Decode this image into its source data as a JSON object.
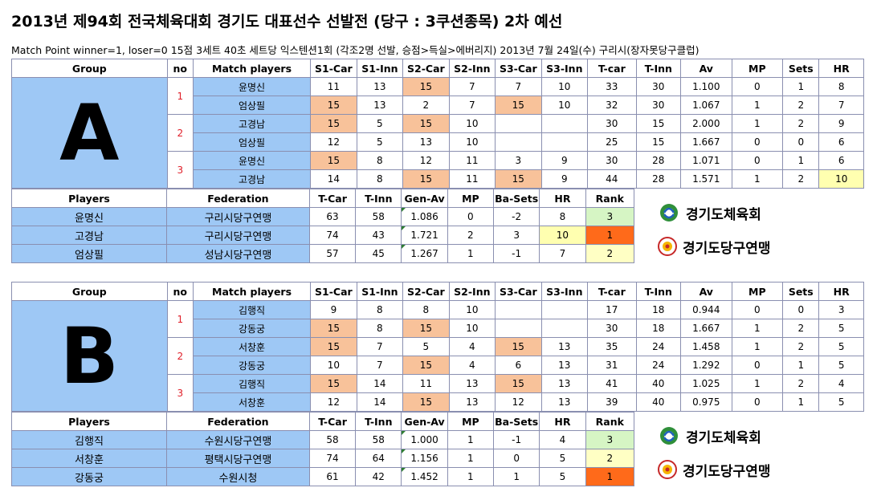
{
  "title": "2013년 제94회 전국체육대회 경기도 대표선수 선발전 (당구 : 3쿠션종목)  2차 예선",
  "subtitle": "Match Point  winner=1, loser=0    15점 3세트 40초 세트당 익스텐션1회  (각조2명 선발, 승점>득실>에버리지) 2013년 7월 24일(수) 구리시(장자못당구클럽)",
  "match_headers": [
    "Group",
    "no",
    "Match players",
    "S1-Car",
    "S1-Inn",
    "S2-Car",
    "S2-Inn",
    "S3-Car",
    "S3-Inn",
    "T-car",
    "T-Inn",
    "Av",
    "MP",
    "Sets",
    "HR"
  ],
  "player_headers": [
    "Players",
    "Federation",
    "T-Car",
    "T-Inn",
    "Gen-Av",
    "MP",
    "Ba-Sets",
    "HR",
    "Rank"
  ],
  "logos": {
    "sports": "경기도체육회",
    "billiards": "경기도당구연맹"
  },
  "groups": [
    {
      "name": "A",
      "matches": [
        {
          "no": "1",
          "rows": [
            {
              "player": "윤명신",
              "s1c": "11",
              "s1i": "13",
              "s2c": "15",
              "s2i": "7",
              "s3c": "7",
              "s3i": "10",
              "tc": "33",
              "ti": "30",
              "av": "1.100",
              "mp": "0",
              "sets": "1",
              "hr": "8"
            },
            {
              "player": "엄상필",
              "s1c": "15",
              "s1i": "13",
              "s2c": "2",
              "s2i": "7",
              "s3c": "15",
              "s3i": "10",
              "tc": "32",
              "ti": "30",
              "av": "1.067",
              "mp": "1",
              "sets": "2",
              "hr": "7"
            }
          ]
        },
        {
          "no": "2",
          "rows": [
            {
              "player": "고경남",
              "s1c": "15",
              "s1i": "5",
              "s2c": "15",
              "s2i": "10",
              "s3c": "",
              "s3i": "",
              "tc": "30",
              "ti": "15",
              "av": "2.000",
              "mp": "1",
              "sets": "2",
              "hr": "9"
            },
            {
              "player": "엄상필",
              "s1c": "12",
              "s1i": "5",
              "s2c": "13",
              "s2i": "10",
              "s3c": "",
              "s3i": "",
              "tc": "25",
              "ti": "15",
              "av": "1.667",
              "mp": "0",
              "sets": "0",
              "hr": "6"
            }
          ]
        },
        {
          "no": "3",
          "rows": [
            {
              "player": "윤명신",
              "s1c": "15",
              "s1i": "8",
              "s2c": "12",
              "s2i": "11",
              "s3c": "3",
              "s3i": "9",
              "tc": "30",
              "ti": "28",
              "av": "1.071",
              "mp": "0",
              "sets": "1",
              "hr": "6"
            },
            {
              "player": "고경남",
              "s1c": "14",
              "s1i": "8",
              "s2c": "15",
              "s2i": "11",
              "s3c": "15",
              "s3i": "9",
              "tc": "44",
              "ti": "28",
              "av": "1.571",
              "mp": "1",
              "sets": "2",
              "hr": "10"
            }
          ]
        }
      ],
      "players": [
        {
          "name": "윤명신",
          "fed": "구리시당구연맹",
          "tc": "63",
          "ti": "58",
          "av": "1.086",
          "mp": "0",
          "sets": "-2",
          "hr": "8",
          "rank": "3"
        },
        {
          "name": "고경남",
          "fed": "구리시당구연맹",
          "tc": "74",
          "ti": "43",
          "av": "1.721",
          "mp": "2",
          "sets": "3",
          "hr": "10",
          "rank": "1"
        },
        {
          "name": "엄상필",
          "fed": "성남시당구연맹",
          "tc": "57",
          "ti": "45",
          "av": "1.267",
          "mp": "1",
          "sets": "-1",
          "hr": "7",
          "rank": "2"
        }
      ]
    },
    {
      "name": "B",
      "matches": [
        {
          "no": "1",
          "rows": [
            {
              "player": "김행직",
              "s1c": "9",
              "s1i": "8",
              "s2c": "8",
              "s2i": "10",
              "s3c": "",
              "s3i": "",
              "tc": "17",
              "ti": "18",
              "av": "0.944",
              "mp": "0",
              "sets": "0",
              "hr": "3"
            },
            {
              "player": "강동궁",
              "s1c": "15",
              "s1i": "8",
              "s2c": "15",
              "s2i": "10",
              "s3c": "",
              "s3i": "",
              "tc": "30",
              "ti": "18",
              "av": "1.667",
              "mp": "1",
              "sets": "2",
              "hr": "5"
            }
          ]
        },
        {
          "no": "2",
          "rows": [
            {
              "player": "서창훈",
              "s1c": "15",
              "s1i": "7",
              "s2c": "5",
              "s2i": "4",
              "s3c": "15",
              "s3i": "13",
              "tc": "35",
              "ti": "24",
              "av": "1.458",
              "mp": "1",
              "sets": "2",
              "hr": "5"
            },
            {
              "player": "강동궁",
              "s1c": "10",
              "s1i": "7",
              "s2c": "15",
              "s2i": "4",
              "s3c": "6",
              "s3i": "13",
              "tc": "31",
              "ti": "24",
              "av": "1.292",
              "mp": "0",
              "sets": "1",
              "hr": "5"
            }
          ]
        },
        {
          "no": "3",
          "rows": [
            {
              "player": "김행직",
              "s1c": "15",
              "s1i": "14",
              "s2c": "11",
              "s2i": "13",
              "s3c": "15",
              "s3i": "13",
              "tc": "41",
              "ti": "40",
              "av": "1.025",
              "mp": "1",
              "sets": "2",
              "hr": "4"
            },
            {
              "player": "서창훈",
              "s1c": "12",
              "s1i": "14",
              "s2c": "15",
              "s2i": "13",
              "s3c": "12",
              "s3i": "13",
              "tc": "39",
              "ti": "40",
              "av": "0.975",
              "mp": "0",
              "sets": "1",
              "hr": "5"
            }
          ]
        }
      ],
      "players": [
        {
          "name": "김행직",
          "fed": "수원시당구연맹",
          "tc": "58",
          "ti": "58",
          "av": "1.000",
          "mp": "1",
          "sets": "-1",
          "hr": "4",
          "rank": "3"
        },
        {
          "name": "서창훈",
          "fed": "평택시당구연맹",
          "tc": "74",
          "ti": "64",
          "av": "1.156",
          "mp": "1",
          "sets": "0",
          "hr": "5",
          "rank": "2"
        },
        {
          "name": "강동궁",
          "fed": "수원시청",
          "tc": "61",
          "ti": "42",
          "av": "1.452",
          "mp": "1",
          "sets": "1",
          "hr": "5",
          "rank": "1"
        }
      ]
    }
  ]
}
